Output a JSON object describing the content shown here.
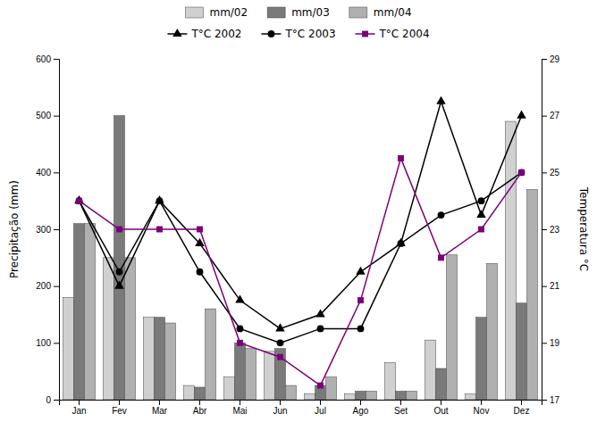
{
  "chart_data": {
    "type": "bar",
    "categories": [
      "Jan",
      "Fev",
      "Mar",
      "Abr",
      "Mai",
      "Jun",
      "Jul",
      "Ago",
      "Set",
      "Out",
      "Nov",
      "Dez"
    ],
    "ylabel": "Precipitação (mm)",
    "y2label": "Temperatura °C",
    "ylim": [
      0,
      600
    ],
    "yticks": [
      0,
      100,
      200,
      300,
      400,
      500,
      600
    ],
    "y2lim": [
      17,
      29
    ],
    "y2ticks": [
      17,
      19,
      21,
      23,
      25,
      27,
      29
    ],
    "grid": false,
    "legend": "top",
    "series": [
      {
        "name": "mm/02",
        "type": "bar",
        "color": "#d0d0d0",
        "values": [
          180,
          250,
          145,
          25,
          40,
          85,
          10,
          10,
          65,
          105,
          10,
          490
        ]
      },
      {
        "name": "mm/03",
        "type": "bar",
        "color": "#7a7a7a",
        "values": [
          310,
          500,
          145,
          22,
          100,
          90,
          25,
          15,
          15,
          55,
          145,
          170
        ]
      },
      {
        "name": "mm/04",
        "type": "bar",
        "color": "#b0b0b0",
        "values": [
          310,
          250,
          135,
          160,
          90,
          25,
          40,
          15,
          15,
          255,
          240,
          370
        ]
      },
      {
        "name": "T°C 2002",
        "type": "line",
        "axis": "y2",
        "color": "#000000",
        "marker": "triangle",
        "values": [
          24.0,
          21.0,
          24.0,
          22.5,
          20.5,
          19.5,
          20.0,
          21.5,
          22.5,
          27.5,
          23.5,
          27.0
        ]
      },
      {
        "name": "T°C 2003",
        "type": "line",
        "axis": "y2",
        "color": "#000000",
        "marker": "circle",
        "values": [
          24.0,
          21.5,
          24.0,
          21.5,
          19.5,
          19.0,
          19.5,
          19.5,
          22.5,
          23.5,
          24.0,
          25.0
        ]
      },
      {
        "name": "T°C 2004",
        "type": "line",
        "axis": "y2",
        "color": "#7b007b",
        "marker": "square",
        "values": [
          24.0,
          23.0,
          23.0,
          23.0,
          19.0,
          18.5,
          17.5,
          20.5,
          25.5,
          22.0,
          23.0,
          25.0
        ]
      }
    ]
  }
}
